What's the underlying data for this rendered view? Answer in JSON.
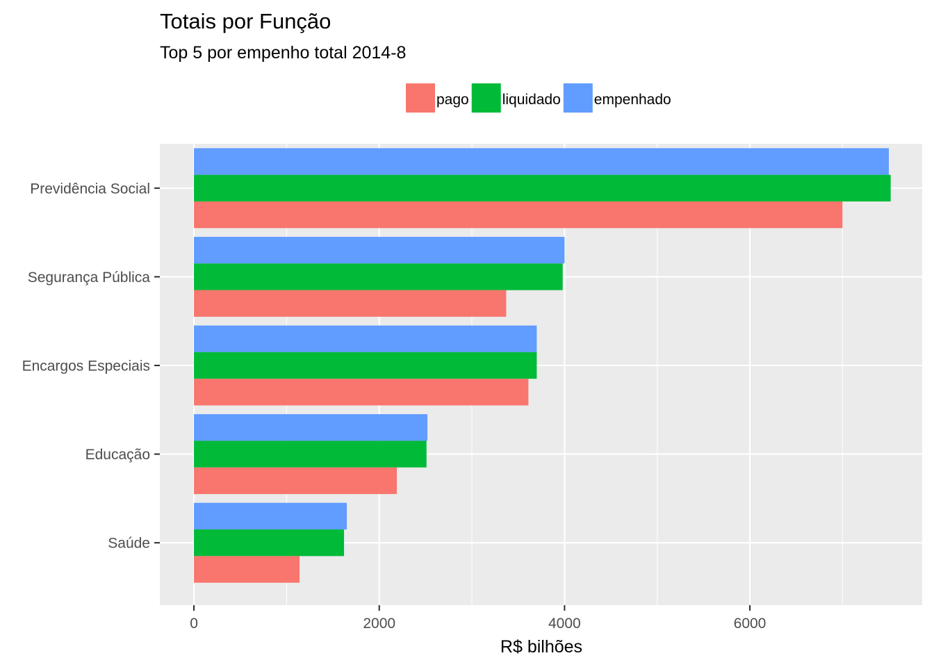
{
  "chart_data": {
    "type": "bar",
    "orientation": "horizontal",
    "title": "Totais por Função",
    "subtitle": "Top 5 por empenho total 2014-8",
    "xlabel": "R$ bilhões",
    "ylabel": "",
    "xlim": [
      -368,
      7860
    ],
    "x_ticks": [
      0,
      2000,
      4000,
      6000
    ],
    "x_tick_labels": [
      "0",
      "2000",
      "4000",
      "6000"
    ],
    "grid": true,
    "legend_position": "top",
    "categories": [
      "Previdência Social",
      "Segurança Pública",
      "Encargos Especiais",
      "Educação",
      "Saúde"
    ],
    "series": [
      {
        "name": "pago",
        "color": "#F8766D",
        "values": [
          7000,
          3370,
          3610,
          2190,
          1140
        ]
      },
      {
        "name": "liquidado",
        "color": "#00BA38",
        "values": [
          7520,
          3980,
          3700,
          2510,
          1620
        ]
      },
      {
        "name": "empenhado",
        "color": "#619CFF",
        "values": [
          7500,
          4000,
          3700,
          2520,
          1650
        ]
      }
    ],
    "legend_order": [
      "pago",
      "liquidado",
      "empenhado"
    ],
    "panel_color": "#EBEBEB"
  }
}
